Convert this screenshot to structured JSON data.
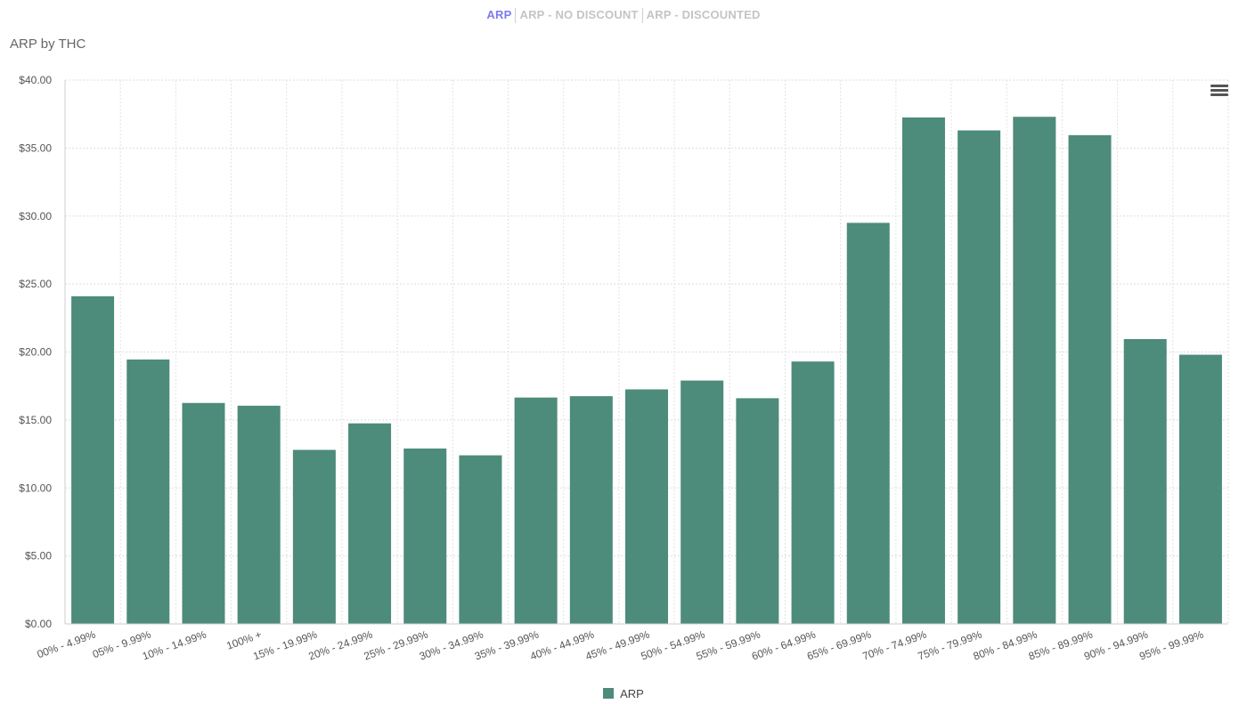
{
  "tabs": {
    "arp": "ARP",
    "no_discount": "ARP - NO DISCOUNT",
    "discounted": "ARP - DISCOUNTED"
  },
  "menu_icon": "hamburger-menu-icon",
  "colors": {
    "bar": "#4d8b7a",
    "active_tab": "#7b7bf0",
    "inactive_tab": "#c4c4c4"
  },
  "chart_data": {
    "type": "bar",
    "title": "ARP by THC",
    "xlabel": "",
    "ylabel": "",
    "ylim": [
      0,
      40
    ],
    "y_ticks": [
      0,
      5,
      10,
      15,
      20,
      25,
      30,
      35,
      40
    ],
    "y_tick_labels": [
      "$0.00",
      "$5.00",
      "$10.00",
      "$15.00",
      "$20.00",
      "$25.00",
      "$30.00",
      "$35.00",
      "$40.00"
    ],
    "grid": true,
    "legend_position": "bottom-center",
    "categories": [
      "00% - 4.99%",
      "05% - 9.99%",
      "10% - 14.99%",
      "100% +",
      "15% - 19.99%",
      "20% - 24.99%",
      "25% - 29.99%",
      "30% - 34.99%",
      "35% - 39.99%",
      "40% - 44.99%",
      "45% - 49.99%",
      "50% - 54.99%",
      "55% - 59.99%",
      "60% - 64.99%",
      "65% - 69.99%",
      "70% - 74.99%",
      "75% - 79.99%",
      "80% - 84.99%",
      "85% - 89.99%",
      "90% - 94.99%",
      "95% - 99.99%"
    ],
    "series": [
      {
        "name": "ARP",
        "values": [
          24.1,
          19.45,
          16.25,
          16.05,
          12.8,
          14.75,
          12.9,
          12.4,
          16.65,
          16.75,
          17.25,
          17.9,
          16.6,
          19.3,
          29.5,
          37.25,
          36.3,
          37.3,
          35.95,
          20.95,
          19.8
        ]
      }
    ]
  }
}
